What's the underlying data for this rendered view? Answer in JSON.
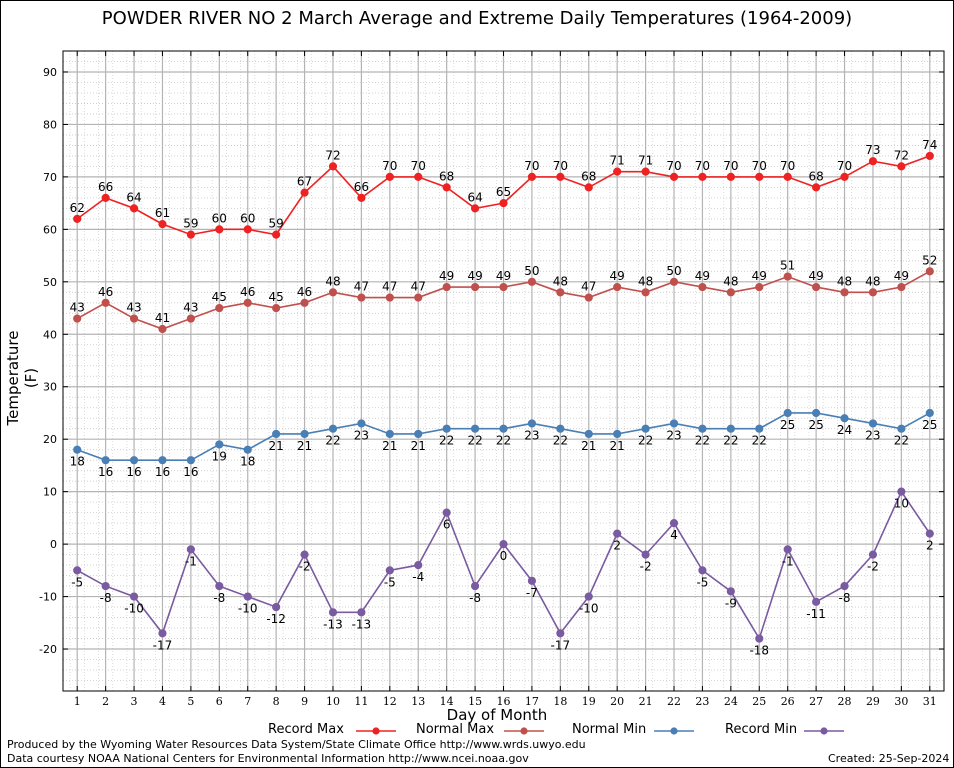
{
  "chart_data": {
    "type": "line",
    "title": "POWDER RIVER NO 2 March Average and Extreme Daily Temperatures (1964-2009)",
    "xlabel": "Day of Month",
    "ylabel": "Temperature (F)",
    "ylim": [
      -28,
      94
    ],
    "yticks": [
      -20,
      -10,
      0,
      10,
      20,
      30,
      40,
      50,
      60,
      70,
      80,
      90
    ],
    "x": [
      1,
      2,
      3,
      4,
      5,
      6,
      7,
      8,
      9,
      10,
      11,
      12,
      13,
      14,
      15,
      16,
      17,
      18,
      19,
      20,
      21,
      22,
      23,
      24,
      25,
      26,
      27,
      28,
      29,
      30,
      31
    ],
    "grid": true,
    "legend_position": "bottom",
    "series": [
      {
        "name": "Record Max",
        "color": "#ee2222",
        "label_pos": "above",
        "values": [
          62,
          66,
          64,
          61,
          59,
          60,
          60,
          59,
          67,
          72,
          66,
          70,
          70,
          68,
          64,
          65,
          70,
          70,
          68,
          71,
          71,
          70,
          70,
          70,
          70,
          70,
          68,
          70,
          73,
          72,
          74
        ]
      },
      {
        "name": "Normal Max",
        "color": "#c0504d",
        "label_pos": "above",
        "values": [
          43,
          46,
          43,
          41,
          43,
          45,
          46,
          45,
          46,
          48,
          47,
          47,
          47,
          49,
          49,
          49,
          50,
          48,
          47,
          49,
          48,
          50,
          49,
          48,
          49,
          51,
          49,
          48,
          48,
          49,
          52
        ]
      },
      {
        "name": "Normal Min",
        "color": "#4a7fb5",
        "label_pos": "below",
        "values": [
          18,
          16,
          16,
          16,
          16,
          19,
          18,
          21,
          21,
          22,
          23,
          21,
          21,
          22,
          22,
          22,
          23,
          22,
          21,
          21,
          22,
          23,
          22,
          22,
          22,
          25,
          25,
          24,
          23,
          22,
          25
        ]
      },
      {
        "name": "Record Min",
        "color": "#7a5aa0",
        "label_pos": "below",
        "values": [
          -5,
          -8,
          -10,
          -17,
          -1,
          -8,
          -10,
          -12,
          -2,
          -13,
          -13,
          -5,
          -4,
          6,
          -8,
          0,
          -7,
          -17,
          -10,
          2,
          -2,
          4,
          -5,
          -9,
          -18,
          -1,
          -11,
          -8,
          -2,
          10,
          2
        ]
      }
    ]
  },
  "footer": {
    "produced_by": "Produced by the Wyoming Water Resources Data System/State Climate Office http://www.wrds.uwyo.edu",
    "courtesy": "Data courtesy NOAA National Centers for Environmental Information http://www.ncei.noaa.gov",
    "created": "Created:  25-Sep-2024"
  }
}
